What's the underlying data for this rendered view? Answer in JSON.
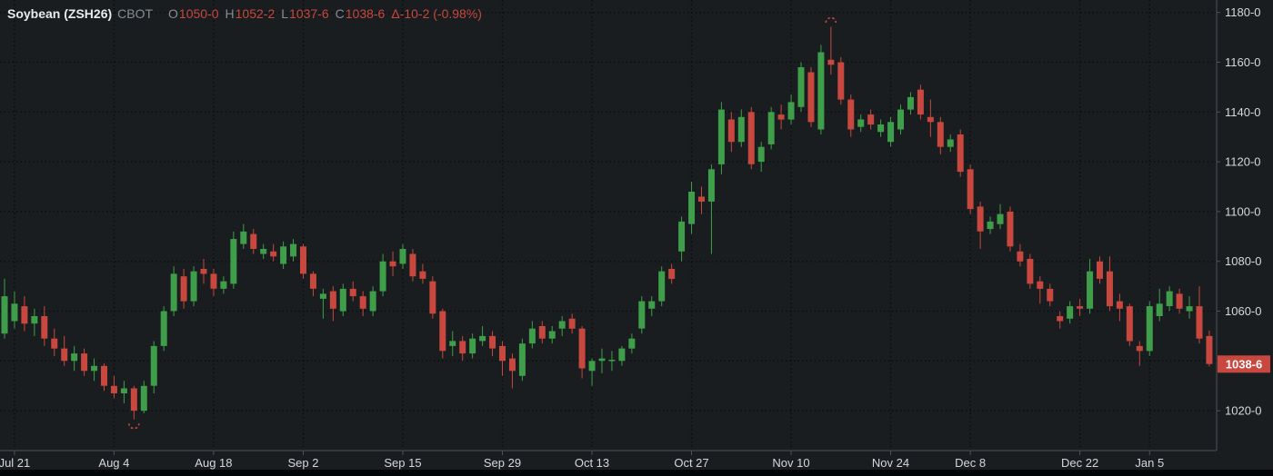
{
  "header": {
    "symbol": "Soybean (ZSH26)",
    "exchange": "CBOT",
    "o_label": "O",
    "o_value": "1050-0",
    "h_label": "H",
    "h_value": "1052-2",
    "l_label": "L",
    "l_value": "1037-6",
    "c_label": "C",
    "c_value": "1038-6",
    "change_value": "Δ-10-2 (-0.98%)"
  },
  "colors": {
    "background": "#191d20",
    "grid": "#0a0c0e",
    "frame": "#4d545b",
    "up": "#3f9e4a",
    "down": "#c8473e",
    "axis_text": "#d5d8dc",
    "muted_text": "#868d95",
    "badge_bg": "#c8473e",
    "badge_text": "#ffffff"
  },
  "chart_data": {
    "type": "candlestick",
    "symbol": "Soybean (ZSH26)",
    "exchange": "CBOT",
    "last_bar": {
      "open": "1050-0",
      "high": "1052-2",
      "low": "1037-6",
      "close": "1038-6",
      "change": "-10-2",
      "change_pct": "-0.98%"
    },
    "ylim": [
      1004,
      1185
    ],
    "grid_prices": [
      1020,
      1040,
      1060,
      1080,
      1100,
      1120,
      1140,
      1160,
      1180
    ],
    "y_ticks": [
      {
        "price": 1180,
        "label": "1180-0"
      },
      {
        "price": 1160,
        "label": "1160-0"
      },
      {
        "price": 1140,
        "label": "1140-0"
      },
      {
        "price": 1120,
        "label": "1120-0"
      },
      {
        "price": 1100,
        "label": "1100-0"
      },
      {
        "price": 1080,
        "label": "1080-0"
      },
      {
        "price": 1060,
        "label": "1060-0"
      },
      {
        "price": 1020,
        "label": "1020-0"
      }
    ],
    "last_price_badge": {
      "price": 1038.75,
      "label": "1038-6"
    },
    "x_ticks": [
      {
        "index": 1,
        "label": "Jul 21"
      },
      {
        "index": 11,
        "label": "Aug 4"
      },
      {
        "index": 21,
        "label": "Aug 18"
      },
      {
        "index": 30,
        "label": "Sep 2"
      },
      {
        "index": 40,
        "label": "Sep 15"
      },
      {
        "index": 50,
        "label": "Sep 29"
      },
      {
        "index": 59,
        "label": "Oct 13"
      },
      {
        "index": 69,
        "label": "Oct 27"
      },
      {
        "index": 79,
        "label": "Nov 10"
      },
      {
        "index": 89,
        "label": "Nov 24"
      },
      {
        "index": 97,
        "label": "Dec 8"
      },
      {
        "index": 108,
        "label": "Dec 22"
      },
      {
        "index": 115,
        "label": "Jan 5"
      }
    ],
    "high_marker_index": 83,
    "low_marker_index": 13,
    "candles": [
      [
        1051,
        1073,
        1049,
        1066
      ],
      [
        1056,
        1068,
        1053,
        1063
      ],
      [
        1062,
        1066,
        1052,
        1055
      ],
      [
        1055,
        1061,
        1050,
        1058
      ],
      [
        1058,
        1062,
        1046,
        1049
      ],
      [
        1049,
        1053,
        1042,
        1045
      ],
      [
        1045,
        1050,
        1038,
        1040
      ],
      [
        1040,
        1046,
        1036,
        1043
      ],
      [
        1043,
        1045,
        1034,
        1036
      ],
      [
        1036,
        1041,
        1032,
        1038
      ],
      [
        1038,
        1039,
        1028,
        1030
      ],
      [
        1030,
        1034,
        1025,
        1027
      ],
      [
        1027,
        1032,
        1023,
        1029
      ],
      [
        1029,
        1030,
        1016.5,
        1020
      ],
      [
        1020,
        1032,
        1019,
        1030
      ],
      [
        1030,
        1048,
        1027,
        1046
      ],
      [
        1046,
        1062,
        1044,
        1060
      ],
      [
        1060,
        1078,
        1058,
        1075
      ],
      [
        1074,
        1077,
        1061,
        1064
      ],
      [
        1064,
        1078,
        1062,
        1076
      ],
      [
        1077,
        1081,
        1071,
        1075
      ],
      [
        1075,
        1077,
        1066,
        1069
      ],
      [
        1069,
        1074,
        1067,
        1072
      ],
      [
        1071,
        1092,
        1069,
        1089
      ],
      [
        1087,
        1095,
        1085,
        1092
      ],
      [
        1091,
        1093,
        1083,
        1085
      ],
      [
        1083,
        1087,
        1081,
        1085
      ],
      [
        1084,
        1087,
        1080,
        1082
      ],
      [
        1079,
        1088,
        1077,
        1086
      ],
      [
        1082,
        1089,
        1080,
        1087
      ],
      [
        1086,
        1087,
        1073,
        1075
      ],
      [
        1075,
        1076,
        1066,
        1069
      ],
      [
        1065,
        1069,
        1057,
        1067
      ],
      [
        1068,
        1070,
        1056,
        1061
      ],
      [
        1060,
        1071,
        1058,
        1069
      ],
      [
        1069,
        1072,
        1064,
        1066
      ],
      [
        1066,
        1068,
        1058,
        1061
      ],
      [
        1060,
        1070,
        1058,
        1068
      ],
      [
        1068,
        1083,
        1066,
        1080
      ],
      [
        1080,
        1084,
        1074,
        1078
      ],
      [
        1079,
        1087,
        1077,
        1085
      ],
      [
        1083,
        1085,
        1072,
        1074
      ],
      [
        1076,
        1079,
        1071,
        1073
      ],
      [
        1072,
        1074,
        1057,
        1059
      ],
      [
        1060,
        1061,
        1041,
        1044
      ],
      [
        1046,
        1052,
        1042,
        1048
      ],
      [
        1048,
        1050,
        1040,
        1043
      ],
      [
        1043,
        1051,
        1041,
        1049
      ],
      [
        1048,
        1054,
        1046,
        1050
      ],
      [
        1050,
        1052,
        1042,
        1045
      ],
      [
        1046,
        1048,
        1034,
        1040
      ],
      [
        1041,
        1043,
        1029,
        1036
      ],
      [
        1034,
        1049,
        1032,
        1047
      ],
      [
        1047,
        1056,
        1045,
        1053
      ],
      [
        1054,
        1056,
        1047,
        1049
      ],
      [
        1049,
        1054,
        1047,
        1052
      ],
      [
        1053,
        1058,
        1050,
        1056
      ],
      [
        1057,
        1059,
        1051,
        1053
      ],
      [
        1053,
        1054,
        1033,
        1037
      ],
      [
        1036,
        1041,
        1030,
        1040
      ],
      [
        1040,
        1045,
        1035,
        1041
      ],
      [
        1040,
        1044,
        1036,
        1040.5
      ],
      [
        1040,
        1046,
        1038,
        1045
      ],
      [
        1045,
        1051,
        1043,
        1049
      ],
      [
        1053,
        1066,
        1051,
        1064
      ],
      [
        1061,
        1066,
        1058,
        1064
      ],
      [
        1064,
        1078,
        1062,
        1076
      ],
      [
        1077,
        1079,
        1071,
        1073
      ],
      [
        1084,
        1098,
        1080,
        1096
      ],
      [
        1095,
        1112,
        1091,
        1108
      ],
      [
        1106,
        1110,
        1099,
        1104
      ],
      [
        1104,
        1119,
        1083,
        1117
      ],
      [
        1119,
        1144,
        1115,
        1141
      ],
      [
        1137,
        1140,
        1124,
        1128
      ],
      [
        1128,
        1141,
        1126,
        1138
      ],
      [
        1140,
        1142,
        1117,
        1119
      ],
      [
        1120,
        1128,
        1116,
        1126
      ],
      [
        1127,
        1142,
        1125,
        1140
      ],
      [
        1139,
        1143,
        1133,
        1137
      ],
      [
        1137,
        1147,
        1135,
        1144
      ],
      [
        1142,
        1160,
        1140,
        1158
      ],
      [
        1156,
        1158,
        1134,
        1136
      ],
      [
        1133,
        1167,
        1131,
        1164
      ],
      [
        1161,
        1174.25,
        1155,
        1159
      ],
      [
        1160,
        1162,
        1143,
        1145
      ],
      [
        1145,
        1147,
        1130,
        1133
      ],
      [
        1134,
        1139,
        1132,
        1137
      ],
      [
        1139,
        1141,
        1133,
        1135
      ],
      [
        1132,
        1137,
        1130,
        1135
      ],
      [
        1128,
        1138,
        1126,
        1136
      ],
      [
        1133,
        1143,
        1131,
        1141
      ],
      [
        1141,
        1148,
        1139,
        1146
      ],
      [
        1149,
        1151,
        1137,
        1139
      ],
      [
        1138,
        1145,
        1130,
        1136
      ],
      [
        1136,
        1138,
        1123,
        1126
      ],
      [
        1126,
        1131,
        1124,
        1129
      ],
      [
        1131,
        1133,
        1114,
        1116
      ],
      [
        1117,
        1119,
        1099,
        1101
      ],
      [
        1102,
        1104,
        1085,
        1092
      ],
      [
        1093,
        1098,
        1091,
        1096
      ],
      [
        1095,
        1103,
        1093,
        1099
      ],
      [
        1100,
        1102,
        1084,
        1086
      ],
      [
        1084,
        1087,
        1078,
        1080
      ],
      [
        1081,
        1083,
        1069,
        1071
      ],
      [
        1072,
        1074,
        1063,
        1069
      ],
      [
        1069,
        1071,
        1062,
        1064
      ],
      [
        1058,
        1060,
        1053,
        1056
      ],
      [
        1057,
        1064,
        1055,
        1062
      ],
      [
        1062,
        1065,
        1058,
        1061
      ],
      [
        1061,
        1081,
        1059,
        1076
      ],
      [
        1080,
        1082,
        1071,
        1073
      ],
      [
        1076,
        1082,
        1060,
        1062
      ],
      [
        1064,
        1067,
        1056,
        1061
      ],
      [
        1062,
        1063,
        1046,
        1048
      ],
      [
        1046,
        1048,
        1038,
        1044
      ],
      [
        1044,
        1064,
        1042,
        1062
      ],
      [
        1058,
        1069,
        1056,
        1063
      ],
      [
        1062,
        1070,
        1060,
        1068
      ],
      [
        1067,
        1069,
        1059,
        1061
      ],
      [
        1060,
        1066,
        1057,
        1062
      ],
      [
        1062,
        1070,
        1047,
        1049
      ],
      [
        1050,
        1052.25,
        1037.75,
        1038.75
      ]
    ]
  }
}
